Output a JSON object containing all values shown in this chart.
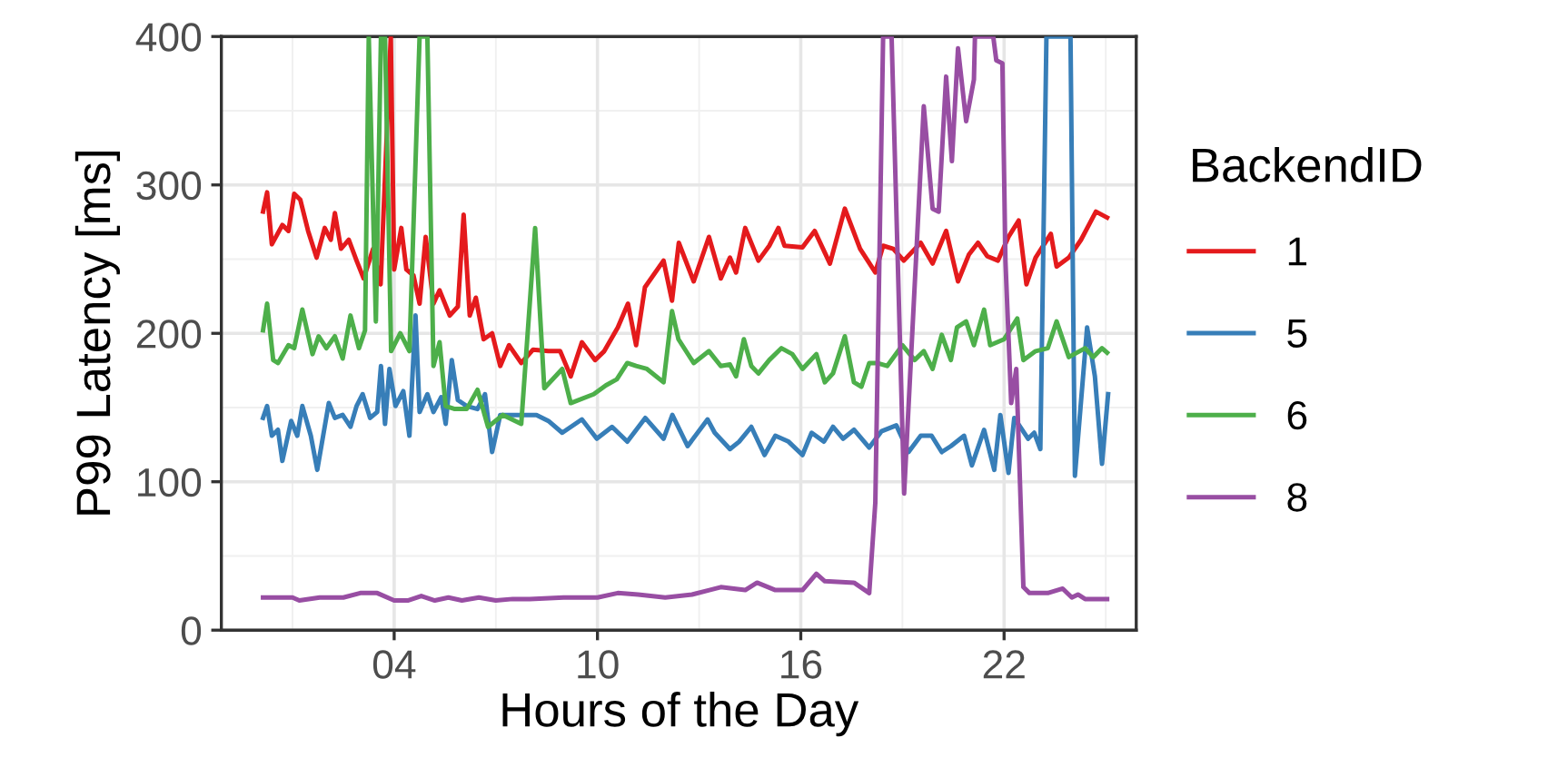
{
  "chart_data": {
    "type": "line",
    "xlabel": "Hours of the Day",
    "ylabel": "P99 Latency [ms]",
    "legend_title": "BackendID",
    "legend": "right",
    "grid": true,
    "line_style": "solid",
    "marker": "none",
    "xlim": [
      -1.1,
      25.9
    ],
    "xticks": [
      {
        "value": 4,
        "label": "04"
      },
      10,
      16,
      22
    ],
    "ylim": [
      0,
      400
    ],
    "yticks": [
      0,
      100,
      200,
      300,
      400
    ],
    "series": [
      {
        "name": "1",
        "color": "#e41a1c",
        "x": [
          0.13,
          0.25,
          0.39,
          0.7,
          0.88,
          1.05,
          1.23,
          1.46,
          1.71,
          1.95,
          2.13,
          2.25,
          2.43,
          2.66,
          2.89,
          3.1,
          3.38,
          3.6,
          3.9,
          4.0,
          4.21,
          4.36,
          4.57,
          4.75,
          4.93,
          5.16,
          5.34,
          5.64,
          5.88,
          6.05,
          6.23,
          6.41,
          6.64,
          6.89,
          7.13,
          7.39,
          7.75,
          8.1,
          8.55,
          8.9,
          9.21,
          9.54,
          9.93,
          10.2,
          10.6,
          10.9,
          11.14,
          11.4,
          11.95,
          12.2,
          12.4,
          12.84,
          13.29,
          13.64,
          13.91,
          14.09,
          14.36,
          14.75,
          15.07,
          15.34,
          15.52,
          16.05,
          16.41,
          16.86,
          17.3,
          17.75,
          18.2,
          18.43,
          18.73,
          19.04,
          19.54,
          19.89,
          20.29,
          20.64,
          20.96,
          21.23,
          21.5,
          21.82,
          22.13,
          22.43,
          22.66,
          22.93,
          23.38,
          23.55,
          23.91,
          24.27,
          24.71,
          25.04
        ],
        "values": [
          282,
          295,
          260,
          273,
          269,
          294,
          290,
          269,
          251,
          271,
          263,
          281,
          257,
          263,
          249,
          237,
          257,
          233,
          400,
          243,
          271,
          243,
          239,
          220,
          265,
          220,
          229,
          212,
          218,
          280,
          212,
          224,
          196,
          200,
          178,
          192,
          180,
          189,
          188,
          188,
          171,
          194,
          182,
          188,
          204,
          220,
          192,
          231,
          249,
          222,
          261,
          235,
          265,
          237,
          251,
          241,
          271,
          249,
          259,
          271,
          259,
          258,
          269,
          247,
          284,
          257,
          241,
          259,
          257,
          249,
          261,
          247,
          269,
          235,
          253,
          261,
          252,
          249,
          265,
          276,
          233,
          251,
          267,
          245,
          251,
          263,
          282,
          278
        ]
      },
      {
        "name": "5",
        "color": "#377eb8",
        "x": [
          0.13,
          0.25,
          0.39,
          0.57,
          0.7,
          0.96,
          1.14,
          1.29,
          1.54,
          1.73,
          2.07,
          2.25,
          2.48,
          2.71,
          2.89,
          3.07,
          3.29,
          3.5,
          3.61,
          3.73,
          3.86,
          4.04,
          4.27,
          4.45,
          4.63,
          4.75,
          4.98,
          5.16,
          5.39,
          5.52,
          5.7,
          5.88,
          6.14,
          6.46,
          6.68,
          6.89,
          7.13,
          7.66,
          8.2,
          8.55,
          8.96,
          9.54,
          9.98,
          10.43,
          10.88,
          11.41,
          11.95,
          12.21,
          12.66,
          13.25,
          13.46,
          13.91,
          14.18,
          14.54,
          14.93,
          15.25,
          15.64,
          16.05,
          16.32,
          16.68,
          16.95,
          17.25,
          17.57,
          18.02,
          18.38,
          18.82,
          19.18,
          19.54,
          19.86,
          20.16,
          20.43,
          20.82,
          21.05,
          21.41,
          21.71,
          21.89,
          22.13,
          22.3,
          22.71,
          22.89,
          23.07,
          23.25,
          23.46,
          23.96,
          24.09,
          24.45,
          24.68,
          24.89,
          25.07
        ],
        "values": [
          143,
          151,
          131,
          135,
          114,
          141,
          131,
          151,
          131,
          108,
          153,
          143,
          145,
          137,
          151,
          159,
          143,
          147,
          178,
          139,
          176,
          151,
          161,
          131,
          212,
          147,
          159,
          147,
          157,
          139,
          182,
          155,
          151,
          149,
          159,
          120,
          145,
          145,
          145,
          141,
          133,
          142,
          129,
          137,
          127,
          143,
          129,
          145,
          124,
          142,
          133,
          122,
          127,
          137,
          118,
          131,
          127,
          118,
          133,
          127,
          137,
          129,
          135,
          123,
          134,
          138,
          120,
          131,
          131,
          120,
          124,
          131,
          111,
          135,
          108,
          145,
          106,
          143,
          129,
          133,
          122,
          400,
          400,
          400,
          104,
          204,
          171,
          112,
          159
        ]
      },
      {
        "name": "6",
        "color": "#4daf4a",
        "x": [
          0.13,
          0.25,
          0.43,
          0.57,
          0.88,
          1.05,
          1.29,
          1.59,
          1.77,
          2.0,
          2.25,
          2.48,
          2.71,
          2.96,
          3.14,
          3.25,
          3.46,
          3.61,
          3.73,
          3.91,
          4.18,
          4.45,
          4.75,
          4.98,
          5.16,
          5.34,
          5.52,
          5.79,
          6.14,
          6.46,
          6.77,
          7.21,
          7.75,
          8.16,
          8.43,
          8.96,
          9.21,
          9.89,
          10.25,
          10.57,
          10.88,
          11.14,
          11.46,
          11.95,
          12.2,
          12.39,
          12.84,
          13.29,
          13.64,
          13.91,
          14.09,
          14.32,
          14.54,
          14.75,
          15.07,
          15.43,
          15.75,
          16.05,
          16.46,
          16.71,
          16.95,
          17.3,
          17.57,
          17.79,
          18.02,
          18.25,
          18.55,
          19.0,
          19.36,
          19.63,
          19.89,
          20.16,
          20.43,
          20.61,
          20.88,
          21.11,
          21.41,
          21.59,
          22.0,
          22.39,
          22.57,
          22.93,
          23.29,
          23.55,
          23.91,
          24.39,
          24.63,
          24.89,
          25.04
        ],
        "values": [
          202,
          220,
          182,
          180,
          192,
          190,
          216,
          186,
          198,
          190,
          198,
          183,
          212,
          190,
          202,
          400,
          208,
          400,
          400,
          188,
          200,
          188,
          400,
          400,
          178,
          194,
          151,
          149,
          149,
          162,
          137,
          145,
          139,
          271,
          163,
          176,
          153,
          159,
          165,
          169,
          180,
          178,
          176,
          167,
          215,
          196,
          180,
          188,
          178,
          179,
          171,
          196,
          178,
          173,
          182,
          190,
          186,
          176,
          186,
          167,
          173,
          198,
          167,
          164,
          180,
          180,
          178,
          192,
          182,
          188,
          176,
          199,
          182,
          204,
          208,
          192,
          216,
          192,
          196,
          210,
          182,
          188,
          190,
          208,
          184,
          190,
          184,
          190,
          187
        ]
      },
      {
        "name": "8",
        "color": "#984ea3",
        "x": [
          0.13,
          1.0,
          1.2,
          1.8,
          2.5,
          3.0,
          3.5,
          4.0,
          4.4,
          4.8,
          5.2,
          5.6,
          6.0,
          6.5,
          7.0,
          7.5,
          8.0,
          9.0,
          10.0,
          10.6,
          11.2,
          12.0,
          12.79,
          13.3,
          13.64,
          14.36,
          14.71,
          15.25,
          16.05,
          16.46,
          16.71,
          17.57,
          18.02,
          18.2,
          18.43,
          18.68,
          19.05,
          19.63,
          19.89,
          20.07,
          20.29,
          20.46,
          20.64,
          20.88,
          21.11,
          21.14,
          21.68,
          21.77,
          21.95,
          22.04,
          22.21,
          22.36,
          22.57,
          22.75,
          23.29,
          23.73,
          24.0,
          24.18,
          24.39,
          25.04
        ],
        "values": [
          22,
          22,
          20,
          22,
          22,
          25,
          25,
          20,
          20,
          23,
          20,
          22,
          20,
          22,
          20,
          21,
          21,
          22,
          22,
          25,
          24,
          22,
          24,
          27,
          29,
          27,
          32,
          27,
          27,
          38,
          33,
          32,
          25,
          86,
          400,
          400,
          92,
          353,
          284,
          282,
          373,
          316,
          392,
          343,
          371,
          400,
          400,
          384,
          382,
          249,
          153,
          176,
          29,
          25,
          25,
          28,
          22,
          24,
          21,
          21
        ]
      }
    ]
  }
}
